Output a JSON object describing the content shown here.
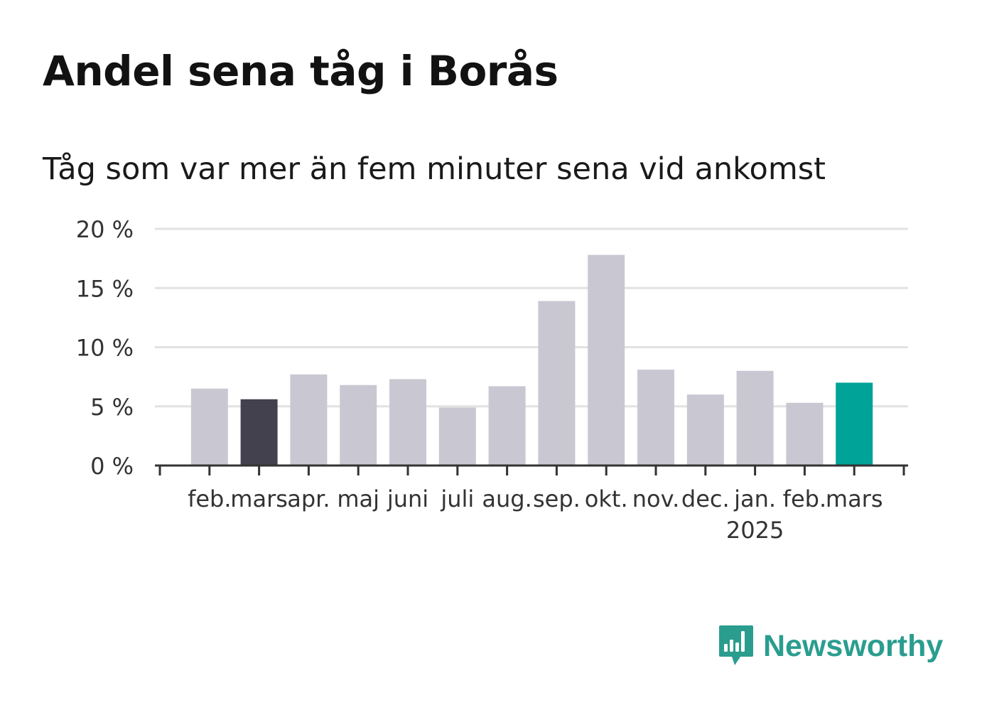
{
  "title": "Andel sena tåg i Borås",
  "subtitle": "Tåg som var mer än fem minuter sena vid ankomst",
  "logo": {
    "icon": "newsworthy-logo-icon",
    "text": "Newsworthy"
  },
  "colors": {
    "default": "#c9c8d2",
    "previous_year": "#42414d",
    "current": "#00a397",
    "axis": "#333333",
    "grid": "#e2e2e2"
  },
  "chart_data": {
    "type": "bar",
    "categories": [
      "feb.",
      "mars",
      "apr.",
      "maj",
      "juni",
      "juli",
      "aug.",
      "sep.",
      "okt.",
      "nov.",
      "dec.",
      "jan.",
      "feb.",
      "mars"
    ],
    "year_labels": [
      {
        "index": 11,
        "label": "2025"
      }
    ],
    "values": [
      6.5,
      5.6,
      7.7,
      6.8,
      7.3,
      4.9,
      6.7,
      13.9,
      17.8,
      8.1,
      6.0,
      8.0,
      5.3,
      7.0
    ],
    "highlight": {
      "1": "previous_year",
      "13": "current"
    },
    "yticks": [
      0,
      5,
      10,
      15,
      20
    ],
    "ytick_labels": [
      "0 %",
      "5 %",
      "10 %",
      "15 %",
      "20 %"
    ],
    "ylim": [
      0,
      20
    ],
    "grid": true
  }
}
